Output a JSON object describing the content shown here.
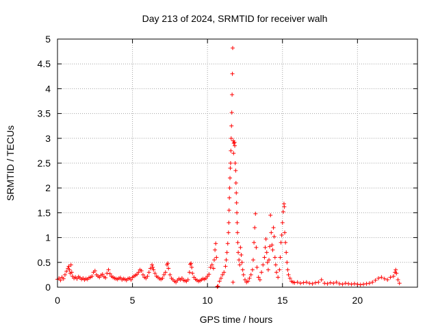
{
  "chart_data": {
    "type": "scatter",
    "title": "Day 213 of 2024, SRMTID for receiver walh",
    "xlabel": "GPS time / hours",
    "ylabel": "SRMTID / TECUs",
    "xlim": [
      0,
      24
    ],
    "ylim": [
      0,
      5
    ],
    "xticks": [
      0,
      5,
      10,
      15,
      20
    ],
    "xtick_labels": [
      "0",
      "5",
      "10",
      "15",
      "20"
    ],
    "yticks": [
      0,
      0.5,
      1,
      1.5,
      2,
      2.5,
      3,
      3.5,
      4,
      4.5,
      5
    ],
    "ytick_labels": [
      "0",
      "0.5",
      "1",
      "1.5",
      "2",
      "2.5",
      "3",
      "3.5",
      "4",
      "4.5",
      "5"
    ],
    "grid": true,
    "marker": "+",
    "marker_color": "#ff0000",
    "series": [
      {
        "name": "SRMTID",
        "points": [
          [
            0.0,
            0.16
          ],
          [
            0.1,
            0.18
          ],
          [
            0.2,
            0.14
          ],
          [
            0.3,
            0.2
          ],
          [
            0.4,
            0.17
          ],
          [
            0.5,
            0.25
          ],
          [
            0.6,
            0.32
          ],
          [
            0.7,
            0.38
          ],
          [
            0.75,
            0.42
          ],
          [
            0.8,
            0.35
          ],
          [
            0.85,
            0.28
          ],
          [
            0.9,
            0.45
          ],
          [
            0.95,
            0.3
          ],
          [
            1.0,
            0.22
          ],
          [
            1.1,
            0.18
          ],
          [
            1.2,
            0.2
          ],
          [
            1.3,
            0.17
          ],
          [
            1.4,
            0.21
          ],
          [
            1.5,
            0.19
          ],
          [
            1.6,
            0.16
          ],
          [
            1.7,
            0.18
          ],
          [
            1.8,
            0.15
          ],
          [
            1.9,
            0.17
          ],
          [
            2.0,
            0.16
          ],
          [
            2.1,
            0.19
          ],
          [
            2.2,
            0.2
          ],
          [
            2.3,
            0.22
          ],
          [
            2.4,
            0.3
          ],
          [
            2.5,
            0.33
          ],
          [
            2.6,
            0.25
          ],
          [
            2.7,
            0.22
          ],
          [
            2.8,
            0.2
          ],
          [
            2.9,
            0.24
          ],
          [
            3.0,
            0.26
          ],
          [
            3.1,
            0.21
          ],
          [
            3.2,
            0.19
          ],
          [
            3.3,
            0.28
          ],
          [
            3.4,
            0.35
          ],
          [
            3.5,
            0.27
          ],
          [
            3.6,
            0.22
          ],
          [
            3.7,
            0.2
          ],
          [
            3.8,
            0.18
          ],
          [
            3.9,
            0.17
          ],
          [
            4.0,
            0.16
          ],
          [
            4.1,
            0.18
          ],
          [
            4.2,
            0.19
          ],
          [
            4.3,
            0.15
          ],
          [
            4.4,
            0.17
          ],
          [
            4.5,
            0.16
          ],
          [
            4.6,
            0.14
          ],
          [
            4.7,
            0.17
          ],
          [
            4.8,
            0.18
          ],
          [
            4.9,
            0.15
          ],
          [
            5.0,
            0.2
          ],
          [
            5.1,
            0.22
          ],
          [
            5.2,
            0.24
          ],
          [
            5.3,
            0.26
          ],
          [
            5.4,
            0.3
          ],
          [
            5.5,
            0.35
          ],
          [
            5.6,
            0.33
          ],
          [
            5.7,
            0.25
          ],
          [
            5.8,
            0.2
          ],
          [
            5.9,
            0.18
          ],
          [
            6.0,
            0.22
          ],
          [
            6.1,
            0.3
          ],
          [
            6.2,
            0.38
          ],
          [
            6.3,
            0.45
          ],
          [
            6.35,
            0.4
          ],
          [
            6.4,
            0.35
          ],
          [
            6.5,
            0.28
          ],
          [
            6.6,
            0.22
          ],
          [
            6.7,
            0.2
          ],
          [
            6.8,
            0.17
          ],
          [
            6.9,
            0.16
          ],
          [
            7.0,
            0.18
          ],
          [
            7.1,
            0.25
          ],
          [
            7.2,
            0.3
          ],
          [
            7.3,
            0.45
          ],
          [
            7.35,
            0.48
          ],
          [
            7.4,
            0.38
          ],
          [
            7.5,
            0.25
          ],
          [
            7.6,
            0.18
          ],
          [
            7.7,
            0.15
          ],
          [
            7.8,
            0.12
          ],
          [
            7.9,
            0.1
          ],
          [
            8.0,
            0.14
          ],
          [
            8.1,
            0.17
          ],
          [
            8.2,
            0.15
          ],
          [
            8.3,
            0.18
          ],
          [
            8.4,
            0.14
          ],
          [
            8.5,
            0.13
          ],
          [
            8.6,
            0.12
          ],
          [
            8.7,
            0.15
          ],
          [
            8.8,
            0.3
          ],
          [
            8.85,
            0.46
          ],
          [
            8.9,
            0.48
          ],
          [
            8.95,
            0.4
          ],
          [
            9.0,
            0.28
          ],
          [
            9.1,
            0.2
          ],
          [
            9.2,
            0.16
          ],
          [
            9.3,
            0.14
          ],
          [
            9.4,
            0.12
          ],
          [
            9.5,
            0.13
          ],
          [
            9.6,
            0.15
          ],
          [
            9.7,
            0.17
          ],
          [
            9.8,
            0.16
          ],
          [
            9.9,
            0.18
          ],
          [
            10.0,
            0.22
          ],
          [
            10.1,
            0.26
          ],
          [
            10.2,
            0.4
          ],
          [
            10.3,
            0.45
          ],
          [
            10.4,
            0.38
          ],
          [
            10.45,
            0.55
          ],
          [
            10.5,
            0.75
          ],
          [
            10.55,
            0.88
          ],
          [
            10.6,
            0.6
          ],
          [
            10.65,
            0.01
          ],
          [
            10.7,
            0.02
          ],
          [
            10.8,
            0.12
          ],
          [
            10.9,
            0.18
          ],
          [
            11.0,
            0.25
          ],
          [
            11.1,
            0.3
          ],
          [
            11.2,
            0.42
          ],
          [
            11.25,
            0.55
          ],
          [
            11.3,
            0.7
          ],
          [
            11.35,
            0.88
          ],
          [
            11.4,
            1.1
          ],
          [
            11.42,
            1.3
          ],
          [
            11.44,
            1.55
          ],
          [
            11.46,
            1.8
          ],
          [
            11.48,
            2.0
          ],
          [
            11.5,
            2.2
          ],
          [
            11.52,
            2.4
          ],
          [
            11.54,
            2.5
          ],
          [
            11.56,
            2.75
          ],
          [
            11.58,
            3.0
          ],
          [
            11.6,
            3.25
          ],
          [
            11.62,
            3.52
          ],
          [
            11.64,
            3.88
          ],
          [
            11.66,
            4.3
          ],
          [
            11.68,
            4.82
          ],
          [
            11.7,
            0.1
          ],
          [
            11.72,
            2.95
          ],
          [
            11.74,
            2.7
          ],
          [
            11.76,
            2.9
          ],
          [
            11.8,
            2.92
          ],
          [
            11.82,
            2.85
          ],
          [
            11.85,
            2.5
          ],
          [
            11.88,
            2.35
          ],
          [
            11.9,
            2.1
          ],
          [
            11.92,
            1.9
          ],
          [
            11.94,
            1.7
          ],
          [
            11.96,
            1.5
          ],
          [
            11.98,
            1.3
          ],
          [
            12.0,
            1.1
          ],
          [
            12.02,
            0.9
          ],
          [
            12.05,
            0.7
          ],
          [
            12.1,
            0.55
          ],
          [
            12.15,
            0.45
          ],
          [
            12.2,
            0.8
          ],
          [
            12.25,
            0.65
          ],
          [
            12.3,
            0.5
          ],
          [
            12.35,
            0.35
          ],
          [
            12.4,
            0.25
          ],
          [
            12.5,
            0.15
          ],
          [
            12.6,
            0.1
          ],
          [
            12.7,
            0.12
          ],
          [
            12.8,
            0.18
          ],
          [
            12.9,
            0.25
          ],
          [
            13.0,
            0.35
          ],
          [
            13.05,
            0.55
          ],
          [
            13.1,
            0.9
          ],
          [
            13.15,
            1.2
          ],
          [
            13.2,
            1.48
          ],
          [
            13.25,
            0.8
          ],
          [
            13.3,
            0.4
          ],
          [
            13.4,
            0.2
          ],
          [
            13.5,
            0.15
          ],
          [
            13.6,
            0.3
          ],
          [
            13.7,
            0.45
          ],
          [
            13.8,
            0.6
          ],
          [
            13.85,
            0.8
          ],
          [
            13.9,
            0.97
          ],
          [
            13.95,
            0.7
          ],
          [
            14.0,
            0.5
          ],
          [
            14.05,
            0.35
          ],
          [
            14.1,
            0.55
          ],
          [
            14.15,
            0.82
          ],
          [
            14.2,
            1.45
          ],
          [
            14.25,
            1.1
          ],
          [
            14.3,
            0.85
          ],
          [
            14.35,
            0.75
          ],
          [
            14.4,
            1.2
          ],
          [
            14.45,
            1.02
          ],
          [
            14.5,
            0.6
          ],
          [
            14.55,
            0.45
          ],
          [
            14.6,
            0.3
          ],
          [
            14.7,
            0.2
          ],
          [
            14.8,
            0.35
          ],
          [
            14.85,
            0.6
          ],
          [
            14.9,
            0.9
          ],
          [
            14.95,
            1.05
          ],
          [
            15.0,
            1.3
          ],
          [
            15.05,
            1.52
          ],
          [
            15.1,
            1.68
          ],
          [
            15.12,
            1.62
          ],
          [
            15.15,
            1.1
          ],
          [
            15.2,
            0.9
          ],
          [
            15.25,
            0.7
          ],
          [
            15.3,
            0.5
          ],
          [
            15.35,
            0.35
          ],
          [
            15.4,
            0.25
          ],
          [
            15.5,
            0.18
          ],
          [
            15.6,
            0.12
          ],
          [
            15.7,
            0.1
          ],
          [
            15.8,
            0.09
          ],
          [
            16.0,
            0.1
          ],
          [
            16.2,
            0.08
          ],
          [
            16.4,
            0.09
          ],
          [
            16.6,
            0.1
          ],
          [
            16.8,
            0.08
          ],
          [
            17.0,
            0.07
          ],
          [
            17.2,
            0.09
          ],
          [
            17.4,
            0.1
          ],
          [
            17.6,
            0.15
          ],
          [
            17.8,
            0.08
          ],
          [
            18.0,
            0.07
          ],
          [
            18.2,
            0.09
          ],
          [
            18.4,
            0.08
          ],
          [
            18.6,
            0.1
          ],
          [
            18.8,
            0.07
          ],
          [
            19.0,
            0.06
          ],
          [
            19.2,
            0.08
          ],
          [
            19.4,
            0.07
          ],
          [
            19.6,
            0.06
          ],
          [
            19.8,
            0.07
          ],
          [
            20.0,
            0.06
          ],
          [
            20.2,
            0.05
          ],
          [
            20.4,
            0.06
          ],
          [
            20.6,
            0.07
          ],
          [
            20.8,
            0.08
          ],
          [
            21.0,
            0.1
          ],
          [
            21.2,
            0.14
          ],
          [
            21.4,
            0.18
          ],
          [
            21.6,
            0.2
          ],
          [
            21.8,
            0.17
          ],
          [
            22.0,
            0.15
          ],
          [
            22.2,
            0.2
          ],
          [
            22.4,
            0.22
          ],
          [
            22.5,
            0.3
          ],
          [
            22.55,
            0.35
          ],
          [
            22.6,
            0.28
          ],
          [
            22.7,
            0.15
          ],
          [
            22.8,
            0.08
          ]
        ]
      }
    ]
  }
}
